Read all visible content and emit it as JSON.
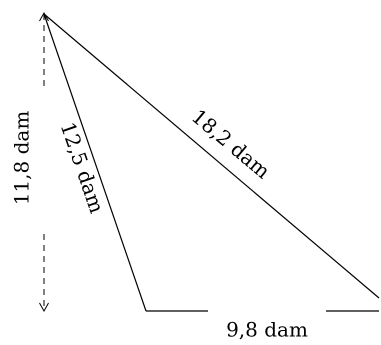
{
  "labels": {
    "hypotenuse": "18,2 dam",
    "left_side": "12,5 dam",
    "height": "11,8 dam",
    "base": "9,8 dam"
  },
  "colors": {
    "stroke": "#000000",
    "background": "#ffffff"
  }
}
